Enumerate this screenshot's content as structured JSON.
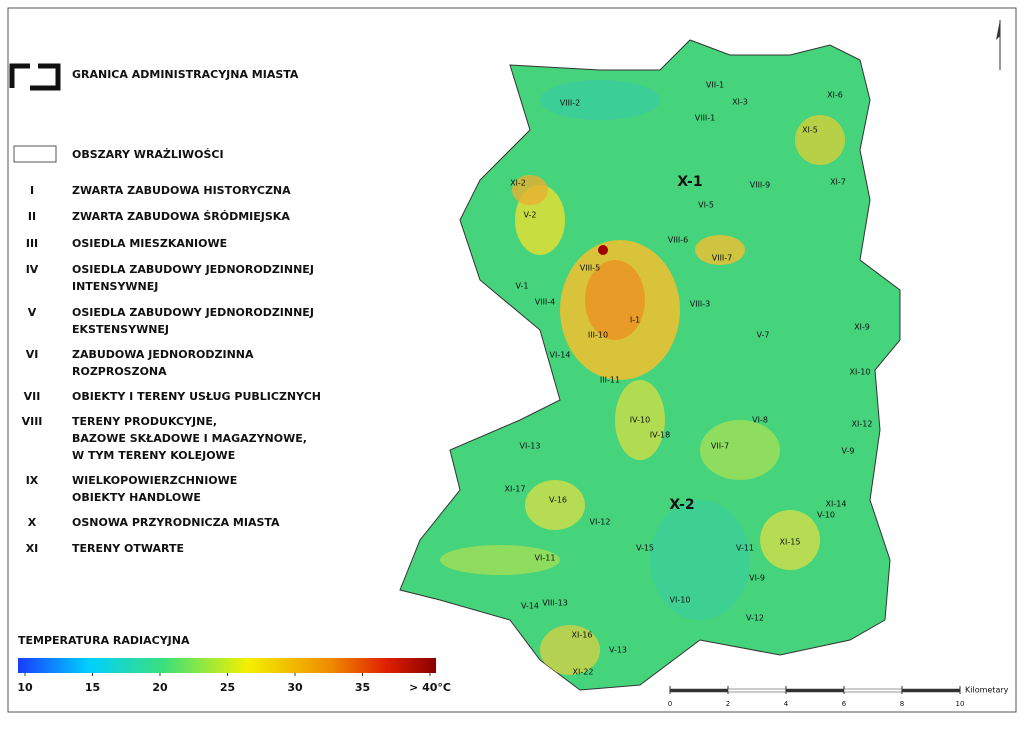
{
  "legend": {
    "boundary": "GRANICA ADMINISTRACYJNA MIASTA",
    "areas": "OBSZARY WRAŻLIWOŚCI",
    "items": [
      {
        "code": "I",
        "text": [
          "ZWARTA ZABUDOWA HISTORYCZNA"
        ]
      },
      {
        "code": "II",
        "text": [
          "ZWARTA ZABUDOWA ŚRÓDMIEJSKA"
        ]
      },
      {
        "code": "III",
        "text": [
          "OSIEDLA MIESZKANIOWE"
        ]
      },
      {
        "code": "IV",
        "text": [
          "OSIEDLA ZABUDOWY JEDNORODZINNEJ",
          "INTENSYWNEJ"
        ]
      },
      {
        "code": "V",
        "text": [
          "OSIEDLA ZABUDOWY JEDNORODZINNEJ",
          "EKSTENSYWNEJ"
        ]
      },
      {
        "code": "VI",
        "text": [
          "ZABUDOWA JEDNORODZINNA",
          "ROZPROSZONA"
        ]
      },
      {
        "code": "VII",
        "text": [
          "OBIEKTY I TERENY USŁUG PUBLICZNYCH"
        ]
      },
      {
        "code": "VIII",
        "text": [
          "TERENY PRODUKCYJNE,",
          "BAZOWE SKŁADOWE I MAGAZYNOWE,",
          "W TYM TERENY KOLEJOWE"
        ]
      },
      {
        "code": "IX",
        "text": [
          "WIELKOPOWIERZCHNIOWE",
          "OBIEKTY HANDLOWE"
        ]
      },
      {
        "code": "X",
        "text": [
          "OSNOWA PRZYRODNICZA MIASTA"
        ]
      },
      {
        "code": "XI",
        "text": [
          "TERENY OTWARTE"
        ]
      }
    ]
  },
  "temperature": {
    "title": "TEMPERATURA RADIACYJNA",
    "ticks": [
      10,
      15,
      20,
      25,
      30,
      35,
      {
        "value": 40,
        "label": "> 40°C"
      }
    ]
  },
  "scale_bar": {
    "unit": "Kilometary",
    "ticks": [
      0,
      2,
      4,
      6,
      8,
      10
    ]
  },
  "map_labels": [
    "X-1",
    "X-2",
    "XI-2",
    "V-2",
    "VIII-5",
    "VIII-7",
    "IV-10",
    "V-16",
    "XI-15",
    "XI-16",
    "XI-22",
    "XI-5",
    "XI-7",
    "XI-3",
    "VIII-2",
    "VI-5",
    "III-10",
    "VI-14",
    "III-11",
    "VII-1",
    "V-7",
    "XI-12",
    "VIII-13",
    "V-14",
    "V-13",
    "VI-10",
    "VI-12",
    "V-15",
    "VI-11",
    "V-11",
    "V-12",
    "XI-14",
    "V-10",
    "VI-8",
    "XI-9",
    "XI-10",
    "VIII-3",
    "VIII-6",
    "VIII-4",
    "V-1",
    "I-1",
    "XI-17",
    "XI-6",
    "VI-13",
    "V-9",
    "VII-7",
    "VI-9",
    "IV-18",
    "VIII-9",
    "VIII-1"
  ]
}
